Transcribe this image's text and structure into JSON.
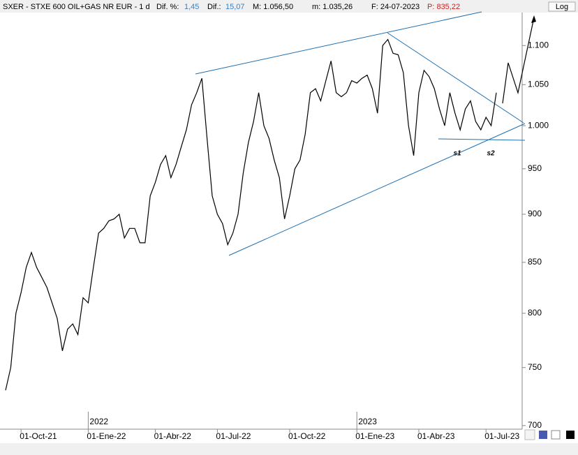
{
  "header": {
    "symbol": "SXER - STXE 600 OIL+GAS NR EUR - 1 d",
    "dif_pct_label": "Dif. %:",
    "dif_pct": "1,45",
    "dif_label": "Dif.:",
    "dif": "15,07",
    "max": "M: 1.056,50",
    "min": "m: 1.035,26",
    "date": "F: 24-07-2023",
    "price": "P: 835,22",
    "log_button": "Log"
  },
  "chart_data": {
    "type": "line",
    "log_scale": true,
    "color": "#000000",
    "categories": [
      null,
      null,
      null,
      "01-Oct-21",
      null,
      null,
      null,
      null,
      null,
      null,
      null,
      null,
      null,
      null,
      null,
      null,
      "01-Ene-22",
      null,
      null,
      null,
      null,
      null,
      null,
      null,
      null,
      null,
      null,
      null,
      null,
      "01-Abr-22",
      null,
      null,
      null,
      null,
      null,
      null,
      null,
      null,
      null,
      null,
      null,
      "01-Jul-22",
      null,
      null,
      null,
      null,
      null,
      null,
      null,
      null,
      null,
      null,
      null,
      null,
      null,
      "01-Oct-22",
      null,
      null,
      null,
      null,
      null,
      null,
      null,
      null,
      null,
      null,
      null,
      null,
      "01-Ene-23",
      null,
      null,
      null,
      null,
      null,
      null,
      null,
      null,
      null,
      null,
      null,
      "01-Abr-23",
      null,
      null,
      null,
      null,
      null,
      null,
      null,
      null,
      null,
      null,
      null,
      null,
      "01-Jul-23",
      null,
      null
    ],
    "values": [
      730,
      750,
      800,
      820,
      845,
      860,
      845,
      835,
      825,
      810,
      795,
      765,
      785,
      790,
      780,
      815,
      810,
      845,
      880,
      885,
      893,
      895,
      900,
      875,
      885,
      885,
      870,
      870,
      920,
      935,
      955,
      965,
      940,
      955,
      975,
      995,
      1025,
      1040,
      1058,
      985,
      920,
      900,
      890,
      868,
      880,
      900,
      945,
      980,
      1005,
      1040,
      1000,
      985,
      960,
      940,
      895,
      920,
      950,
      960,
      990,
      1040,
      1045,
      1030,
      1055,
      1080,
      1040,
      1035,
      1040,
      1055,
      1052,
      1058,
      1062,
      1045,
      1015,
      1100,
      1108,
      1090,
      1088,
      1065,
      1000,
      965,
      1040,
      1068,
      1060,
      1045,
      1020,
      1000,
      1040,
      1015,
      995,
      1020,
      1030,
      1005,
      995,
      1010,
      1000,
      1040
    ],
    "ylim": [
      697,
      1144
    ],
    "yticks": [
      700,
      750,
      800,
      850,
      900,
      950,
      {
        "value": 1000,
        "label": "1.000"
      },
      {
        "value": 1050,
        "label": "1.050"
      },
      {
        "value": 1100,
        "label": "1.100"
      }
    ],
    "year_labels": [
      "2022",
      "2023"
    ],
    "annotations": [
      "s1",
      "s2"
    ]
  }
}
